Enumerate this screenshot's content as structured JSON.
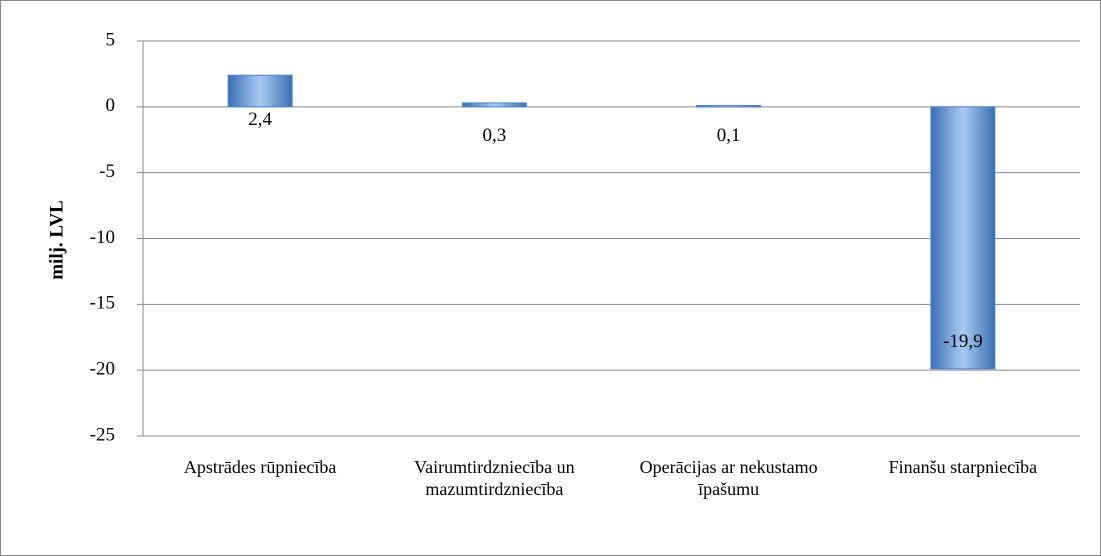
{
  "chart_data": {
    "type": "bar",
    "y_axis_label": "milj. LVL",
    "categories": [
      "Apstrādes rūpniecība",
      "Vairumtirdzniecība un mazumtirdzniecība",
      "Operācijas ar nekustamo īpašumu",
      "Finanšu starpniecība"
    ],
    "values": [
      2.4,
      0.3,
      0.1,
      -19.9
    ],
    "value_labels": [
      "2,4",
      "0,3",
      "0,1",
      "-19,9"
    ],
    "color": "#4f86c6",
    "ylim": [
      -25,
      5
    ],
    "yticks": [
      -25,
      -20,
      -15,
      -10,
      -5,
      0,
      5
    ],
    "grid": true
  }
}
